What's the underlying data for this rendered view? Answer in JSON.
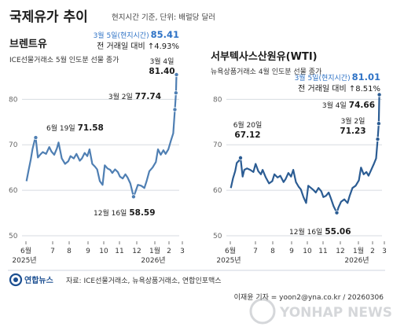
{
  "header": {
    "title": "국제유가 추이",
    "subtitle": "현지시간 기준, 단위: 배럴당 달러"
  },
  "footer": {
    "logo_text": "연합뉴스",
    "source": "자료: ICE선물거래소, 뉴욕상품거래소, 연합인포맥스",
    "credit": "이재윤 기자 = yoon2@yna.co.kr / 20260306",
    "watermark": "YONHAP NEWS"
  },
  "colors": {
    "brent_line": "#4f7fb3",
    "wti_line": "#2b5c93",
    "highlight": "#2f73c6",
    "grid": "#d7dbe0",
    "accent_bubble": "#e6eef7"
  },
  "chart_data": [
    {
      "type": "line",
      "title": "브렌트유",
      "subtitle": "ICE선물거래소 5월 인도분 선물 종가",
      "x_ticks": [
        {
          "label": "6월",
          "sub": "2025년"
        },
        {
          "label": "7"
        },
        {
          "label": "8"
        },
        {
          "label": "9"
        },
        {
          "label": "10"
        },
        {
          "label": "11"
        },
        {
          "label": "12"
        },
        {
          "label": "1월",
          "sub": "2026년"
        },
        {
          "label": "2"
        },
        {
          "label": "3"
        }
      ],
      "x_start": "2025-06-01",
      "x_end": "2026-03-10",
      "y_ticks": [
        50,
        60,
        70,
        80
      ],
      "ylim": [
        50,
        88
      ],
      "annotations": [
        {
          "date_label": "3월 5일(현지시간)",
          "value_label": "85.41",
          "extra": "전 거래일 대비 ↑4.93%"
        },
        {
          "date_label": "3월 4일",
          "value_label": "81.40"
        },
        {
          "date_label": "3월 2일",
          "value_label": "77.74"
        },
        {
          "date_label": "6월 19일",
          "value_label": "71.58"
        },
        {
          "date_label": "12월 16일",
          "value_label": "58.59"
        }
      ],
      "series": [
        {
          "x": [
            "2025-06-02",
            "2025-06-06",
            "2025-06-10",
            "2025-06-13",
            "2025-06-17",
            "2025-06-19",
            "2025-06-23",
            "2025-06-27",
            "2025-07-02",
            "2025-07-08",
            "2025-07-14",
            "2025-07-18",
            "2025-07-23",
            "2025-07-28",
            "2025-07-31",
            "2025-08-06",
            "2025-08-12",
            "2025-08-18",
            "2025-08-22",
            "2025-08-28",
            "2025-09-02",
            "2025-09-08",
            "2025-09-12",
            "2025-09-17",
            "2025-09-22",
            "2025-09-26",
            "2025-10-01",
            "2025-10-06",
            "2025-10-10",
            "2025-10-15",
            "2025-10-20",
            "2025-10-24",
            "2025-10-29",
            "2025-11-03",
            "2025-11-07",
            "2025-11-12",
            "2025-11-17",
            "2025-11-21",
            "2025-11-26",
            "2025-12-01",
            "2025-12-05",
            "2025-12-10",
            "2025-12-16",
            "2025-12-19",
            "2025-12-24",
            "2025-12-30",
            "2026-01-05",
            "2026-01-09",
            "2026-01-14",
            "2026-01-20",
            "2026-01-26",
            "2026-01-30",
            "2026-02-04",
            "2026-02-09",
            "2026-02-13",
            "2026-02-18",
            "2026-02-23",
            "2026-02-27",
            "2026-03-02",
            "2026-03-04",
            "2026-03-05"
          ],
          "values": [
            62.0,
            64.5,
            66.8,
            69.0,
            71.0,
            71.58,
            67.2,
            67.8,
            68.4,
            68.0,
            69.5,
            68.5,
            67.8,
            69.2,
            70.5,
            67.0,
            65.8,
            66.4,
            67.5,
            67.0,
            68.0,
            66.5,
            67.0,
            68.2,
            67.5,
            69.0,
            65.8,
            65.2,
            64.6,
            62.0,
            61.2,
            65.5,
            64.8,
            64.5,
            63.8,
            64.6,
            64.0,
            63.0,
            62.6,
            63.5,
            62.8,
            61.5,
            58.59,
            59.5,
            61.2,
            61.0,
            60.5,
            62.0,
            64.2,
            65.0,
            66.2,
            69.0,
            67.8,
            68.8,
            68.0,
            69.0,
            71.0,
            72.5,
            77.74,
            81.4,
            85.41
          ]
        }
      ]
    },
    {
      "type": "line",
      "title": "서부텍사스산원유(WTI)",
      "subtitle": "뉴욕상품거래소 4월 인도분 선물 종가",
      "x_ticks": [
        {
          "label": "6월",
          "sub": "2025년"
        },
        {
          "label": "7"
        },
        {
          "label": "8"
        },
        {
          "label": "9"
        },
        {
          "label": "10"
        },
        {
          "label": "11"
        },
        {
          "label": "12"
        },
        {
          "label": "1월",
          "sub": "2026년"
        },
        {
          "label": "2"
        },
        {
          "label": "3"
        }
      ],
      "x_start": "2025-06-01",
      "x_end": "2026-03-10",
      "y_ticks": [
        50,
        60,
        70,
        80
      ],
      "ylim": [
        50,
        88
      ],
      "annotations": [
        {
          "date_label": "3월 5일(현지시간)",
          "value_label": "81.01",
          "extra": "전 거래일 대비 ↑8.51%"
        },
        {
          "date_label": "3월 4일",
          "value_label": "74.66"
        },
        {
          "date_label": "3월 2일",
          "value_label": "71.23"
        },
        {
          "date_label": "6월 20일",
          "value_label": "67.12"
        },
        {
          "date_label": "12월 16일",
          "value_label": "55.06"
        }
      ],
      "series": [
        {
          "x": [
            "2025-06-02",
            "2025-06-06",
            "2025-06-10",
            "2025-06-13",
            "2025-06-17",
            "2025-06-20",
            "2025-06-24",
            "2025-06-27",
            "2025-07-02",
            "2025-07-08",
            "2025-07-14",
            "2025-07-18",
            "2025-07-23",
            "2025-07-28",
            "2025-07-31",
            "2025-08-06",
            "2025-08-12",
            "2025-08-18",
            "2025-08-22",
            "2025-08-28",
            "2025-09-02",
            "2025-09-08",
            "2025-09-12",
            "2025-09-17",
            "2025-09-22",
            "2025-09-26",
            "2025-10-01",
            "2025-10-06",
            "2025-10-10",
            "2025-10-15",
            "2025-10-20",
            "2025-10-24",
            "2025-10-29",
            "2025-11-03",
            "2025-11-07",
            "2025-11-12",
            "2025-11-17",
            "2025-11-21",
            "2025-11-26",
            "2025-12-01",
            "2025-12-05",
            "2025-12-10",
            "2025-12-16",
            "2025-12-19",
            "2025-12-24",
            "2025-12-30",
            "2026-01-05",
            "2026-01-09",
            "2026-01-14",
            "2026-01-20",
            "2026-01-26",
            "2026-01-30",
            "2026-02-04",
            "2026-02-09",
            "2026-02-13",
            "2026-02-18",
            "2026-02-23",
            "2026-02-27",
            "2026-03-02",
            "2026-03-04",
            "2026-03-05"
          ],
          "values": [
            60.5,
            62.6,
            64.2,
            66.0,
            66.5,
            67.12,
            63.0,
            64.5,
            64.8,
            64.5,
            64.0,
            65.8,
            64.2,
            63.5,
            64.5,
            62.8,
            61.5,
            62.0,
            63.5,
            62.8,
            63.2,
            61.8,
            62.5,
            63.8,
            63.0,
            64.5,
            61.8,
            60.8,
            60.2,
            58.5,
            57.2,
            61.0,
            60.5,
            60.0,
            59.5,
            60.5,
            59.8,
            58.5,
            58.8,
            59.5,
            58.2,
            56.5,
            55.06,
            56.2,
            57.5,
            58.0,
            57.2,
            58.8,
            60.5,
            61.0,
            62.2,
            65.0,
            63.5,
            64.0,
            63.2,
            64.5,
            65.8,
            67.0,
            71.23,
            74.66,
            81.01
          ]
        }
      ]
    }
  ]
}
